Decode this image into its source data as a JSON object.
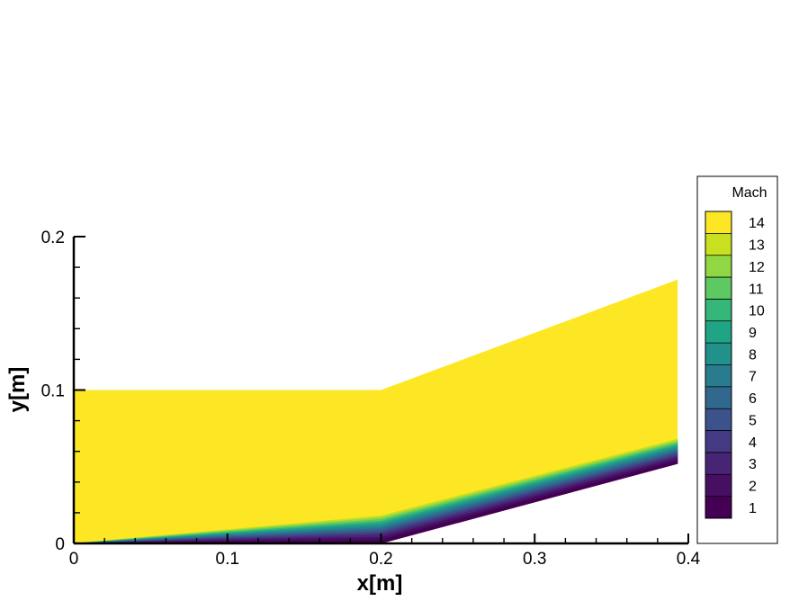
{
  "chart_data": {
    "type": "heatmap",
    "xlabel": "x[m]",
    "ylabel": "y[m]",
    "xlim": [
      0,
      0.4
    ],
    "ylim": [
      0,
      0.2
    ],
    "x_ticks": [
      "0",
      "0.1",
      "0.2",
      "0.3",
      "0.4"
    ],
    "y_ticks": [
      "0",
      "0.1",
      "0.2"
    ],
    "x_tick_values": [
      0,
      0.1,
      0.2,
      0.3,
      0.4
    ],
    "y_tick_values": [
      0,
      0.1,
      0.2
    ],
    "field_name": "Mach",
    "colorbar": {
      "title": "Mach",
      "levels": [
        "14",
        "13",
        "12",
        "11",
        "10",
        "9",
        "8",
        "7",
        "6",
        "5",
        "4",
        "3",
        "2",
        "1"
      ],
      "colors": [
        "#fde725",
        "#c8e020",
        "#90d743",
        "#5ec962",
        "#35b779",
        "#20a486",
        "#21918c",
        "#287c8e",
        "#31688e",
        "#3b528b",
        "#443983",
        "#482475",
        "#470f62",
        "#440154"
      ]
    },
    "domain_outline": {
      "x": [
        0,
        0.2,
        0.393,
        0.393,
        0.2,
        0
      ],
      "y": [
        0,
        0,
        0.052,
        0.172,
        0.1,
        0.1
      ]
    },
    "freestream_mach": 14,
    "ramp_start_x": 0.2,
    "boundary_layer_edge": {
      "x": [
        0,
        0.2,
        0.393
      ],
      "y": [
        0,
        0.018,
        0.068
      ]
    }
  }
}
